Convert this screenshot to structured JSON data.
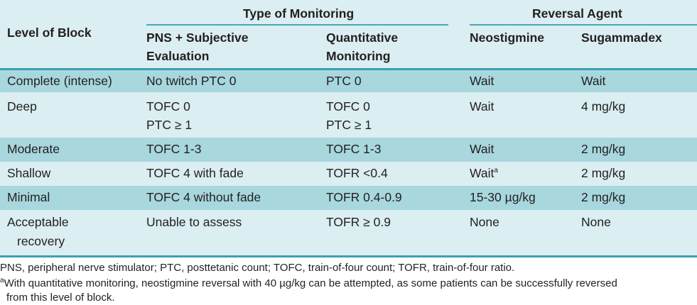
{
  "header": {
    "level_of_block": "Level of Block",
    "type_of_monitoring": "Type of Monitoring",
    "reversal_agent": "Reversal Agent",
    "pns_line1": "PNS + Subjective",
    "pns_line2": "Evaluation",
    "quant_line1": "Quantitative",
    "quant_line2": "Monitoring",
    "neostigmine": "Neostigmine",
    "sugammadex": "Sugammadex"
  },
  "rows": [
    {
      "level": "Complete (intense)",
      "pns": "No twitch PTC 0",
      "quant": "PTC 0",
      "neo": "Wait",
      "sug": "Wait"
    },
    {
      "level": "Deep",
      "pns": "TOFC 0",
      "pns2": "PTC ≥ 1",
      "quant": "TOFC 0",
      "quant2": "PTC ≥ 1",
      "neo": "Wait",
      "sug": "4 mg/kg"
    },
    {
      "level": "Moderate",
      "pns": "TOFC 1-3",
      "quant": "TOFC 1-3",
      "neo": "Wait",
      "sug": "2 mg/kg"
    },
    {
      "level": "Shallow",
      "pns": "TOFC 4 with fade",
      "quant": "TOFR <0.4",
      "neo": "Wait",
      "neo_sup": "a",
      "sug": "2 mg/kg"
    },
    {
      "level": "Minimal",
      "pns": "TOFC 4 without fade",
      "quant": "TOFR 0.4-0.9",
      "neo": "15-30 µg/kg",
      "sug": "2 mg/kg"
    },
    {
      "level": "Acceptable",
      "level2": "recovery",
      "pns": "Unable to assess",
      "quant": "TOFR ≥ 0.9",
      "neo": "None",
      "sug": "None"
    }
  ],
  "footnotes": {
    "abbrev": "PNS, peripheral nerve stimulator; PTC, posttetanic count; TOFC, train-of-four count; TOFR, train-of-four ratio.",
    "a_marker": "a",
    "a_line1": "With quantitative monitoring, neostigmine reversal with 40 µg/kg can be attempted, as some patients can be successfully reversed",
    "a_line2": "from this level of block."
  },
  "colors": {
    "header_bg": "#dbeef1",
    "row_dark": "#a8d7de",
    "row_light": "#dbeef1",
    "rule": "#3aa0ae"
  }
}
